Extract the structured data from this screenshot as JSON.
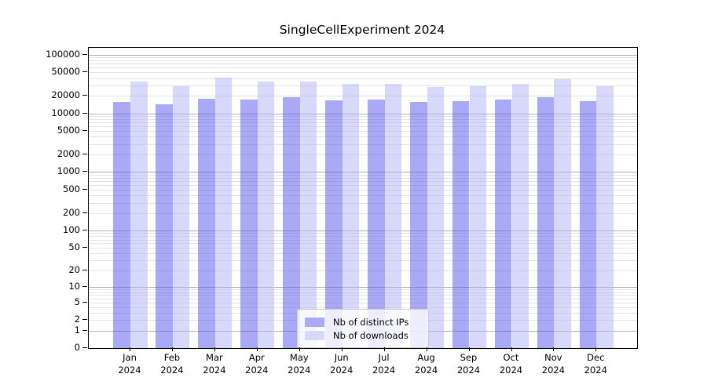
{
  "chart_data": {
    "type": "bar",
    "title": "SingleCellExperiment 2024",
    "categories": [
      "Jan",
      "Feb",
      "Mar",
      "Apr",
      "May",
      "Jun",
      "Jul",
      "Aug",
      "Sep",
      "Oct",
      "Nov",
      "Dec"
    ],
    "year_label": "2024",
    "series": [
      {
        "name": "Nb of distinct IPs",
        "color": "#aaaaf6",
        "fill": "rgba(84,84,238,0.5)",
        "values": [
          15500,
          14400,
          17700,
          17200,
          18700,
          16500,
          17200,
          15500,
          16000,
          17300,
          19000,
          16000
        ]
      },
      {
        "name": "Nb of downloads",
        "color": "#d8d8fa",
        "fill": "rgba(177,177,245,0.5)",
        "values": [
          34600,
          28800,
          40400,
          35200,
          35200,
          31900,
          31900,
          28200,
          29000,
          32000,
          38000,
          28800
        ]
      }
    ],
    "y_axis": {
      "scale": "log1p",
      "max": 100000,
      "ticks": [
        100000,
        50000,
        20000,
        10000,
        5000,
        2000,
        1000,
        500,
        200,
        100,
        50,
        20,
        10,
        5,
        2,
        1,
        0
      ]
    },
    "x_axis": {
      "label_lines": 2
    },
    "grid": true,
    "legend_position": "bottom-center",
    "style": {
      "grid_major_color": "#b0b0b0",
      "grid_minor_color": "#e4e4e4",
      "spine_color": "#000000",
      "background": "#ffffff"
    }
  }
}
